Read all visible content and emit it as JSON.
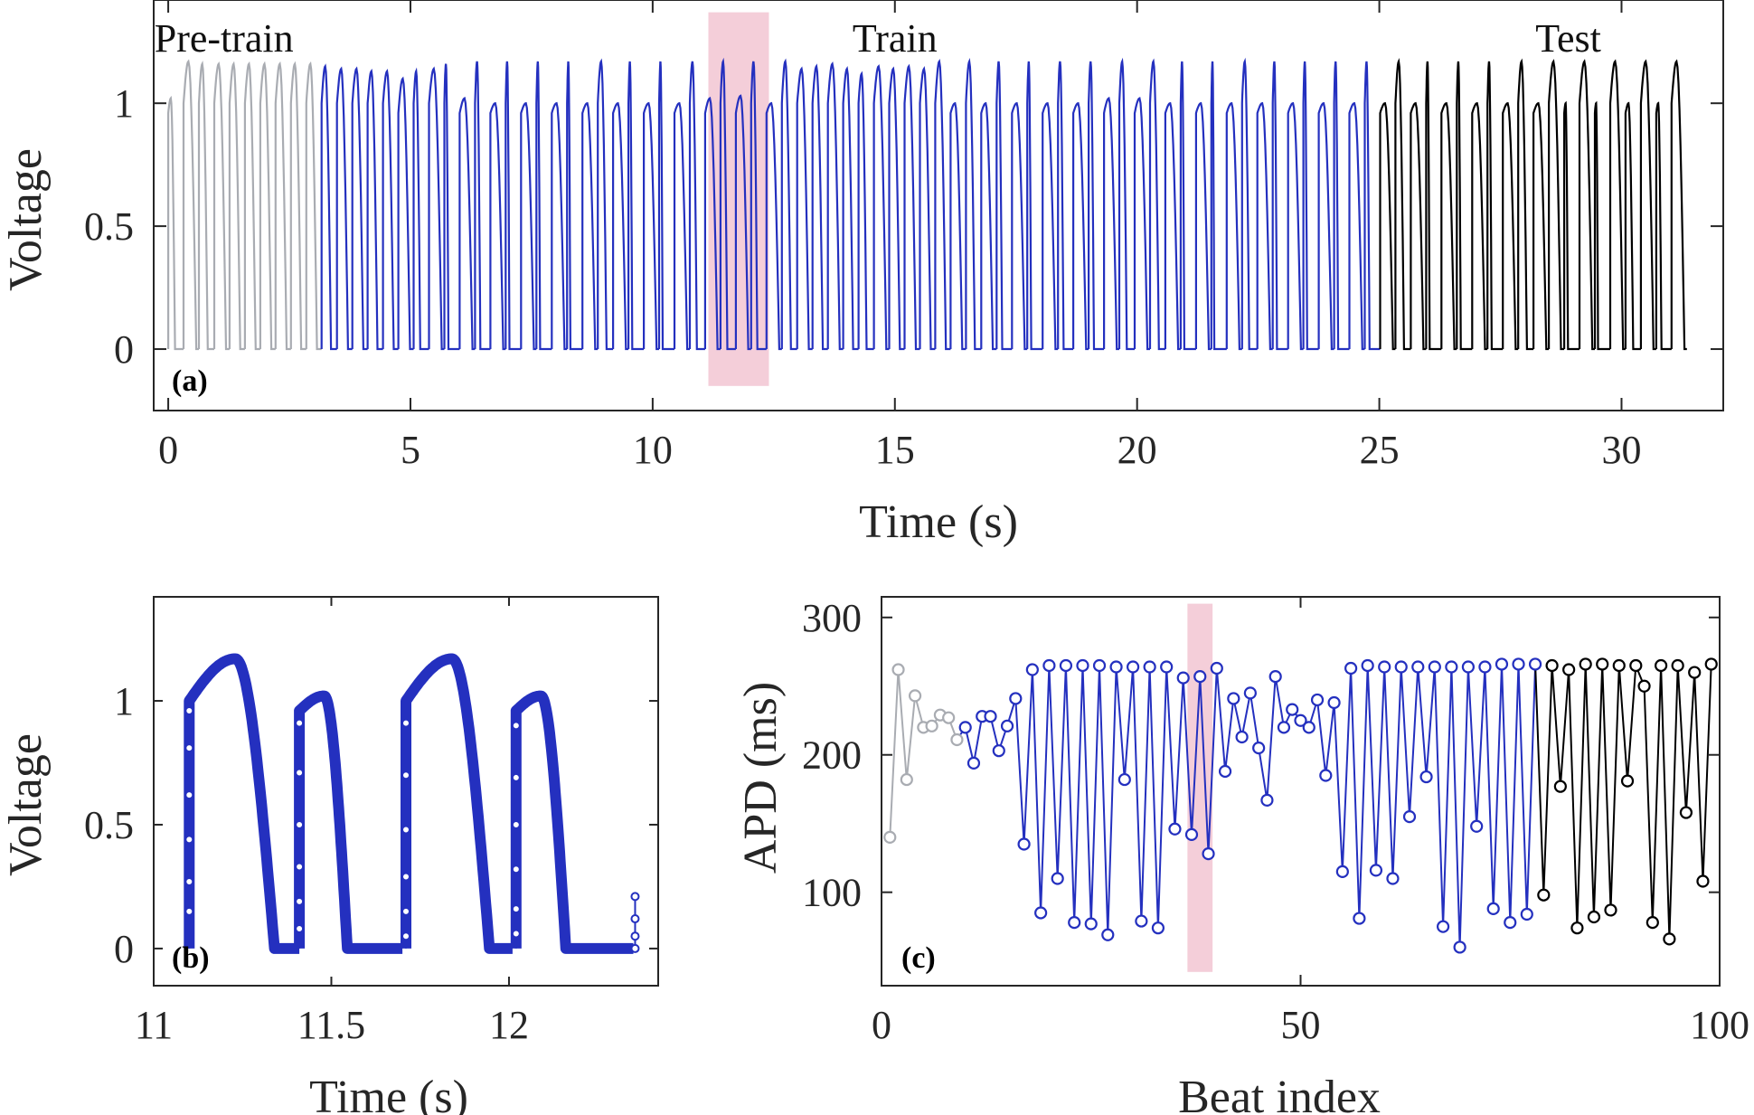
{
  "colors": {
    "pre": "#a9acb2",
    "train": "#2430bf",
    "test": "#000000",
    "highlight": "#f2c6d2"
  },
  "chart_data": [
    {
      "panel": "(a)",
      "type": "line",
      "xlabel": "Time (s)",
      "ylabel": "Voltage",
      "xlim": [
        -0.3,
        32.1
      ],
      "ylim": [
        -0.25,
        1.42
      ],
      "xticks": [
        0,
        5,
        10,
        15,
        20,
        25,
        30
      ],
      "yticks": [
        0,
        0.5,
        1
      ],
      "segments": [
        {
          "label": "Pre-train",
          "t_start": 0.0,
          "t_end": 3.0,
          "color_key": "pre"
        },
        {
          "label": "Train",
          "t_start": 3.0,
          "t_end": 25.0,
          "color_key": "train"
        },
        {
          "label": "Test",
          "t_start": 25.0,
          "t_end": 31.4,
          "color_key": "test"
        }
      ],
      "highlight": [
        11.15,
        12.4
      ],
      "beat_apd_ms": [
        140,
        262,
        182,
        243,
        220,
        221,
        229,
        227,
        211,
        220,
        194,
        228,
        228,
        203,
        221,
        241,
        135,
        262,
        85,
        265,
        110,
        265,
        78,
        265,
        77,
        265,
        69,
        264,
        182,
        264,
        79,
        264,
        74,
        264,
        146,
        256,
        142,
        257,
        128,
        263,
        188,
        241,
        213,
        245,
        205,
        167,
        257,
        220,
        233,
        225,
        220,
        240,
        185,
        238,
        115,
        263,
        81,
        265,
        116,
        264,
        110,
        264,
        155,
        264,
        184,
        264,
        75,
        264,
        60,
        264,
        148,
        264,
        88,
        266,
        78,
        266,
        84,
        266,
        98,
        265,
        177,
        262,
        74,
        266,
        82,
        266,
        87,
        265,
        181,
        265,
        250,
        78,
        265,
        66,
        265,
        158,
        260,
        108,
        266
      ],
      "beat_peak": [
        1.02,
        1.17,
        1.16,
        1.16,
        1.16,
        1.16,
        1.16,
        1.16,
        1.16,
        1.16,
        1.15,
        1.14,
        1.14,
        1.13,
        1.13,
        1.1,
        1.13,
        1.14,
        1.16,
        1.02,
        1.17,
        1.0,
        1.17,
        1.0,
        1.17,
        1.0,
        1.17,
        1.0,
        1.17,
        1.0,
        1.17,
        1.0,
        1.17,
        1.0,
        1.17,
        1.02,
        1.17,
        1.03,
        1.17,
        1.0,
        1.17,
        1.14,
        1.15,
        1.16,
        1.14,
        1.12,
        1.15,
        1.14,
        1.15,
        1.14,
        1.17,
        1.0,
        1.17,
        1.0,
        1.17,
        1.0,
        1.17,
        1.0,
        1.17,
        1.0,
        1.17,
        1.02,
        1.17,
        1.02,
        1.17,
        1.0,
        1.17,
        1.0,
        1.17,
        1.0,
        1.17,
        1.0,
        1.17,
        1.0,
        1.17,
        1.0,
        1.17,
        1.0,
        1.17,
        1.0,
        1.17,
        1.0,
        1.17,
        1.0,
        1.17,
        1.0,
        1.17,
        1.0,
        1.17,
        1.0,
        1.17,
        1.0,
        1.17,
        1.0,
        1.17,
        1.0,
        1.17,
        1.0,
        1.17
      ]
    },
    {
      "panel": "(b)",
      "type": "line",
      "xlabel": "Time (s)",
      "ylabel": "Voltage",
      "xlim": [
        11.0,
        12.42
      ],
      "ylim": [
        -0.15,
        1.42
      ],
      "xticks": [
        11,
        11.5,
        12
      ],
      "yticks": [
        0,
        0.5,
        1
      ],
      "beats": [
        {
          "t0": 11.1,
          "t_end": 11.41,
          "peak": 1.17,
          "t_peak": 11.23,
          "t_down": 11.34,
          "upstroke_points": [
            0.15,
            0.27,
            0.44,
            0.62,
            0.81,
            0.96
          ]
        },
        {
          "t0": 11.41,
          "t_end": 11.7,
          "peak": 1.02,
          "t_peak": 11.48,
          "t_down": 11.545,
          "upstroke_points": [
            0.08,
            0.19,
            0.33,
            0.5,
            0.71,
            0.91
          ]
        },
        {
          "t0": 11.71,
          "t_end": 12.01,
          "peak": 1.17,
          "t_peak": 11.84,
          "t_down": 11.945,
          "upstroke_points": [
            0.05,
            0.15,
            0.29,
            0.48,
            0.7,
            0.91
          ]
        },
        {
          "t0": 12.02,
          "t_end": 12.35,
          "peak": 1.02,
          "t_peak": 12.09,
          "t_down": 12.16,
          "upstroke_points": [
            0.06,
            0.16,
            0.32,
            0.5,
            0.69,
            0.9
          ]
        }
      ],
      "tail": {
        "t": 12.355,
        "points": [
          0.0,
          0.05,
          0.12,
          0.21
        ]
      }
    },
    {
      "panel": "(c)",
      "type": "line",
      "xlabel": "Beat index",
      "ylabel": "APD (ms)",
      "xlim": [
        0,
        100
      ],
      "ylim": [
        32,
        315
      ],
      "xticks": [
        0,
        50,
        100
      ],
      "yticks": [
        100,
        200,
        300
      ],
      "highlight": [
        36.5,
        39.5
      ],
      "series_ranges": [
        {
          "color_key": "pre",
          "from": 1,
          "to": 9
        },
        {
          "color_key": "train",
          "from": 9,
          "to": 78
        },
        {
          "color_key": "test",
          "from": 78,
          "to": 99
        }
      ]
    }
  ]
}
